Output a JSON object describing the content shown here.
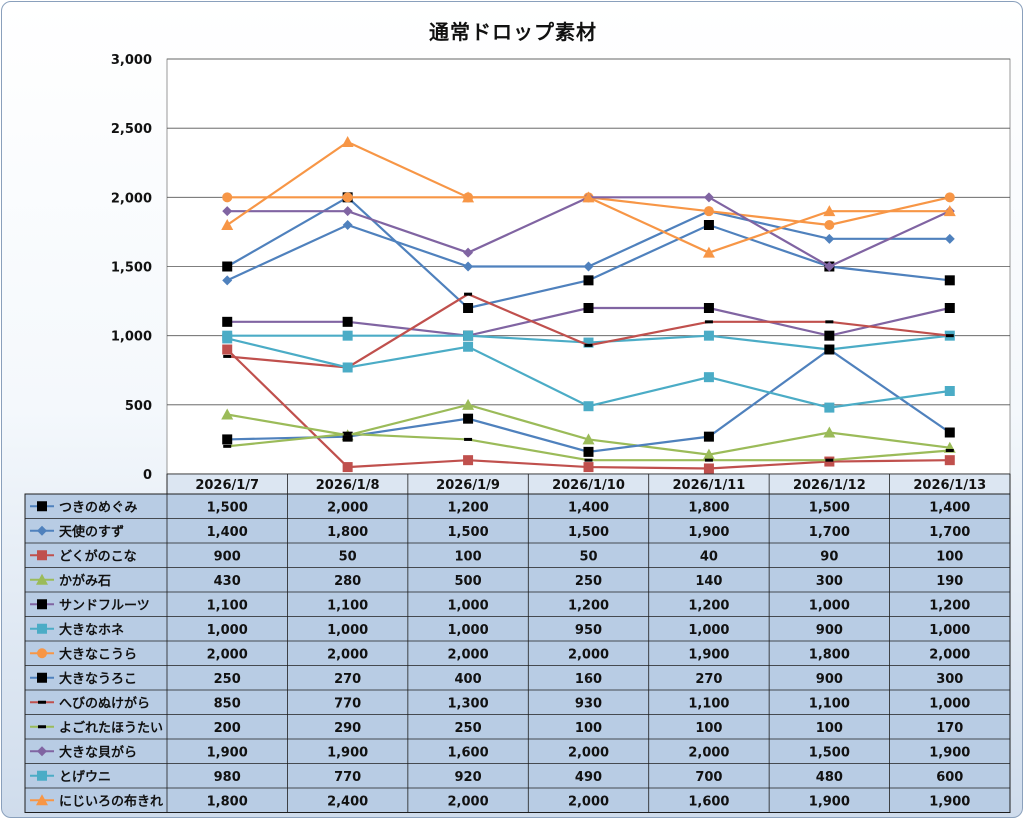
{
  "chart_data": {
    "type": "line",
    "title": "通常ドロップ素材",
    "categories": [
      "2026/1/7",
      "2026/1/8",
      "2026/1/9",
      "2026/1/10",
      "2026/1/11",
      "2026/1/12",
      "2026/1/13"
    ],
    "ylim": [
      0,
      3000
    ],
    "yticks": [
      "0",
      "500",
      "1,000",
      "1,500",
      "2,000",
      "2,500",
      "3,000"
    ],
    "grid": true,
    "legend": "data-table",
    "series": [
      {
        "name": "つきのめぐみ",
        "color": "#4f81bd",
        "marker": "square",
        "values": [
          1500,
          2000,
          1200,
          1400,
          1800,
          1500,
          1400
        ],
        "labels": [
          "1,500",
          "2,000",
          "1,200",
          "1,400",
          "1,800",
          "1,500",
          "1,400"
        ]
      },
      {
        "name": "天使のすず",
        "color": "#4f81bd",
        "marker": "diamond",
        "values": [
          1400,
          1800,
          1500,
          1500,
          1900,
          1700,
          1700
        ],
        "labels": [
          "1,400",
          "1,800",
          "1,500",
          "1,500",
          "1,900",
          "1,700",
          "1,700"
        ]
      },
      {
        "name": "どくがのこな",
        "color": "#c0504d",
        "marker": "square",
        "values": [
          900,
          50,
          100,
          50,
          40,
          90,
          100
        ],
        "labels": [
          "900",
          "50",
          "100",
          "50",
          "40",
          "90",
          "100"
        ]
      },
      {
        "name": "かがみ石",
        "color": "#9bbb59",
        "marker": "triangle",
        "values": [
          430,
          280,
          500,
          250,
          140,
          300,
          190
        ],
        "labels": [
          "430",
          "280",
          "500",
          "250",
          "140",
          "300",
          "190"
        ]
      },
      {
        "name": "サンドフルーツ",
        "color": "#8064a2",
        "marker": "square",
        "values": [
          1100,
          1100,
          1000,
          1200,
          1200,
          1000,
          1200
        ],
        "labels": [
          "1,100",
          "1,100",
          "1,000",
          "1,200",
          "1,200",
          "1,000",
          "1,200"
        ]
      },
      {
        "name": "大きなホネ",
        "color": "#4bacc6",
        "marker": "square",
        "values": [
          1000,
          1000,
          1000,
          950,
          1000,
          900,
          1000
        ],
        "labels": [
          "1,000",
          "1,000",
          "1,000",
          "950",
          "1,000",
          "900",
          "1,000"
        ]
      },
      {
        "name": "大きなこうら",
        "color": "#f79646",
        "marker": "circle",
        "values": [
          2000,
          2000,
          2000,
          2000,
          1900,
          1800,
          2000
        ],
        "labels": [
          "2,000",
          "2,000",
          "2,000",
          "2,000",
          "1,900",
          "1,800",
          "2,000"
        ]
      },
      {
        "name": "大きなうろこ",
        "color": "#4f81bd",
        "marker": "square",
        "values": [
          250,
          270,
          400,
          160,
          270,
          900,
          300
        ],
        "labels": [
          "250",
          "270",
          "400",
          "160",
          "270",
          "900",
          "300"
        ]
      },
      {
        "name": "へびのぬけがら",
        "color": "#c0504d",
        "marker": "dash",
        "values": [
          850,
          770,
          1300,
          930,
          1100,
          1100,
          1000
        ],
        "labels": [
          "850",
          "770",
          "1,300",
          "930",
          "1,100",
          "1,100",
          "1,000"
        ]
      },
      {
        "name": "よごれたほうたい",
        "color": "#9bbb59",
        "marker": "dash",
        "values": [
          200,
          290,
          250,
          100,
          100,
          100,
          170
        ],
        "labels": [
          "200",
          "290",
          "250",
          "100",
          "100",
          "100",
          "170"
        ]
      },
      {
        "name": "大きな貝がら",
        "color": "#8064a2",
        "marker": "diamond",
        "values": [
          1900,
          1900,
          1600,
          2000,
          2000,
          1500,
          1900
        ],
        "labels": [
          "1,900",
          "1,900",
          "1,600",
          "2,000",
          "2,000",
          "1,500",
          "1,900"
        ]
      },
      {
        "name": "とげウニ",
        "color": "#4bacc6",
        "marker": "square",
        "values": [
          980,
          770,
          920,
          490,
          700,
          480,
          600
        ],
        "labels": [
          "980",
          "770",
          "920",
          "490",
          "700",
          "480",
          "600"
        ]
      },
      {
        "name": "にじいろの布きれ",
        "color": "#f79646",
        "marker": "triangle",
        "values": [
          1800,
          2400,
          2000,
          2000,
          1600,
          1900,
          1900
        ],
        "labels": [
          "1,800",
          "2,400",
          "2,000",
          "2,000",
          "1,600",
          "1,900",
          "1,900"
        ]
      }
    ]
  }
}
